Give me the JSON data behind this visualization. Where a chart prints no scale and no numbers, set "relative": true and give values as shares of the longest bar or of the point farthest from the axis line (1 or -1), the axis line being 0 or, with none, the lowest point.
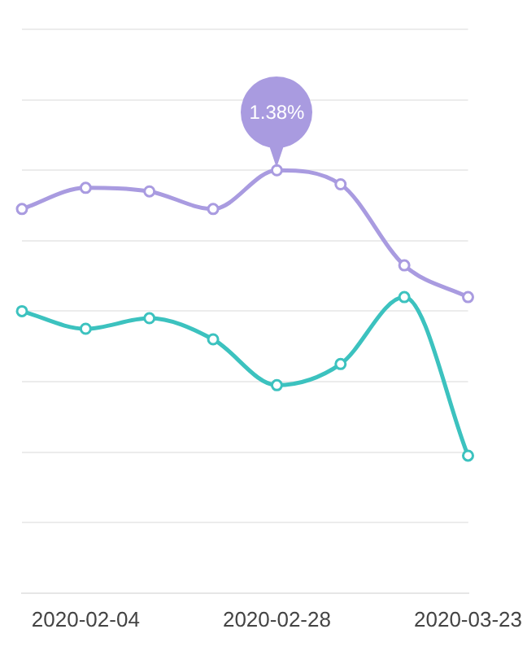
{
  "chart_data": {
    "type": "line",
    "relative": true,
    "categories": [
      null,
      "2020-02-04",
      null,
      null,
      "2020-02-28",
      null,
      null,
      "2020-03-23"
    ],
    "series": [
      {
        "color": "#a99be0",
        "values": [
          0.89,
          0.95,
          0.94,
          0.89,
          1,
          0.96,
          0.73,
          0.64
        ]
      },
      {
        "color": "#3cc2bf",
        "values": [
          0.6,
          0.55,
          0.58,
          0.52,
          0.39,
          0.45,
          0.64,
          0.19
        ]
      }
    ],
    "annotations": [
      {
        "text": "1.38%",
        "x": "2020-02-28",
        "y": 1
      }
    ],
    "grid": "y",
    "legend": false,
    "marker": "circle",
    "line_style": "solid"
  }
}
